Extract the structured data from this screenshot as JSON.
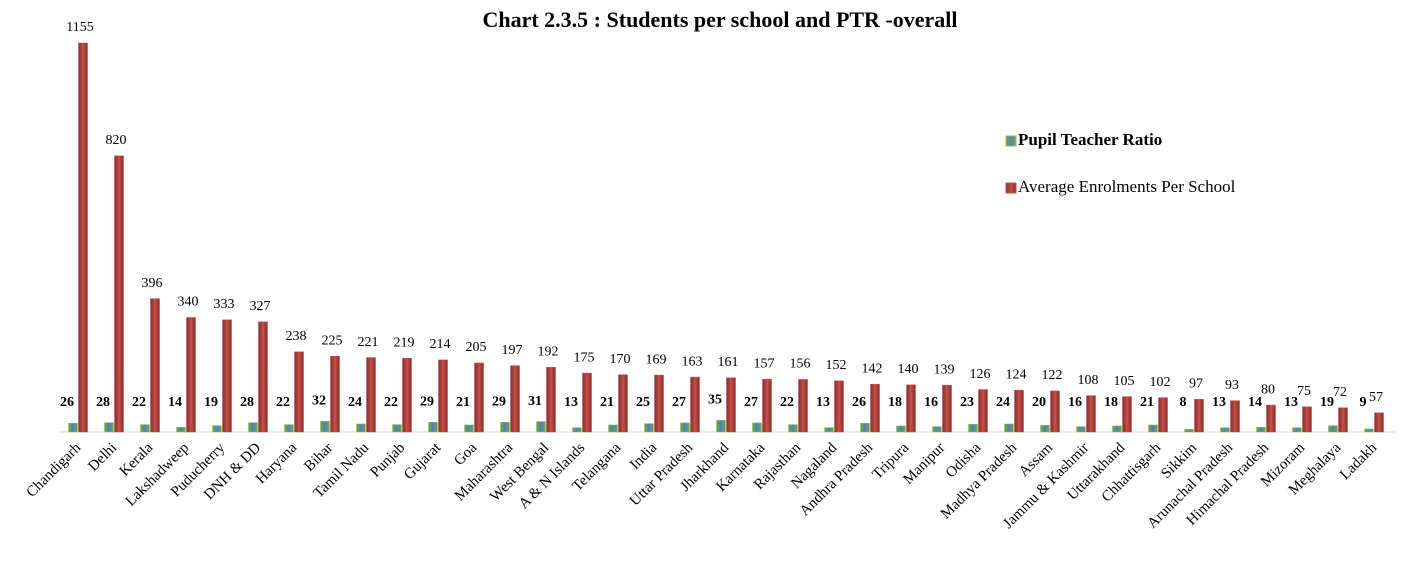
{
  "chart_data": {
    "type": "bar",
    "title": "Chart 2.3.5 : Students per school and PTR -overall",
    "categories": [
      "Chandigarh",
      "Delhi",
      "Kerala",
      "Lakshadweep",
      "Puducherry",
      "DNH & DD",
      "Haryana",
      "Bihar",
      "Tamil Nadu",
      "Punjab",
      "Gujarat",
      "Goa",
      "Maharashtra",
      "West Bengal",
      "A & N Islands",
      "Telangana",
      "India",
      "Uttar Pradesh",
      "Jharkhand",
      "Karnataka",
      "Rajasthan",
      "Nagaland",
      "Andhra Pradesh",
      "Tripura",
      "Manipur",
      "Odisha",
      "Madhya Pradesh",
      "Assam",
      "Jammu & Kashmir",
      "Uttarakhand",
      "Chhattisgarh",
      "Sikkim",
      "Arunachal Pradesh",
      "Himachal Pradesh",
      "Mizoram",
      "Meghalaya",
      "Ladakh"
    ],
    "series": [
      {
        "name": "Pupil Teacher Ratio",
        "color": "#8cc152",
        "values": [
          26,
          28,
          22,
          14,
          19,
          28,
          22,
          32,
          24,
          22,
          29,
          21,
          29,
          31,
          13,
          21,
          25,
          27,
          35,
          27,
          22,
          13,
          26,
          18,
          16,
          23,
          24,
          20,
          16,
          18,
          21,
          8,
          13,
          14,
          13,
          19,
          9
        ]
      },
      {
        "name": "Average Enrolments Per School",
        "color": "#c0504d",
        "values": [
          1155,
          820,
          396,
          340,
          333,
          327,
          238,
          225,
          221,
          219,
          214,
          205,
          197,
          192,
          175,
          170,
          169,
          163,
          161,
          157,
          156,
          152,
          142,
          140,
          139,
          126,
          124,
          122,
          108,
          105,
          102,
          97,
          93,
          80,
          75,
          72,
          57
        ]
      }
    ],
    "legend": "right"
  }
}
